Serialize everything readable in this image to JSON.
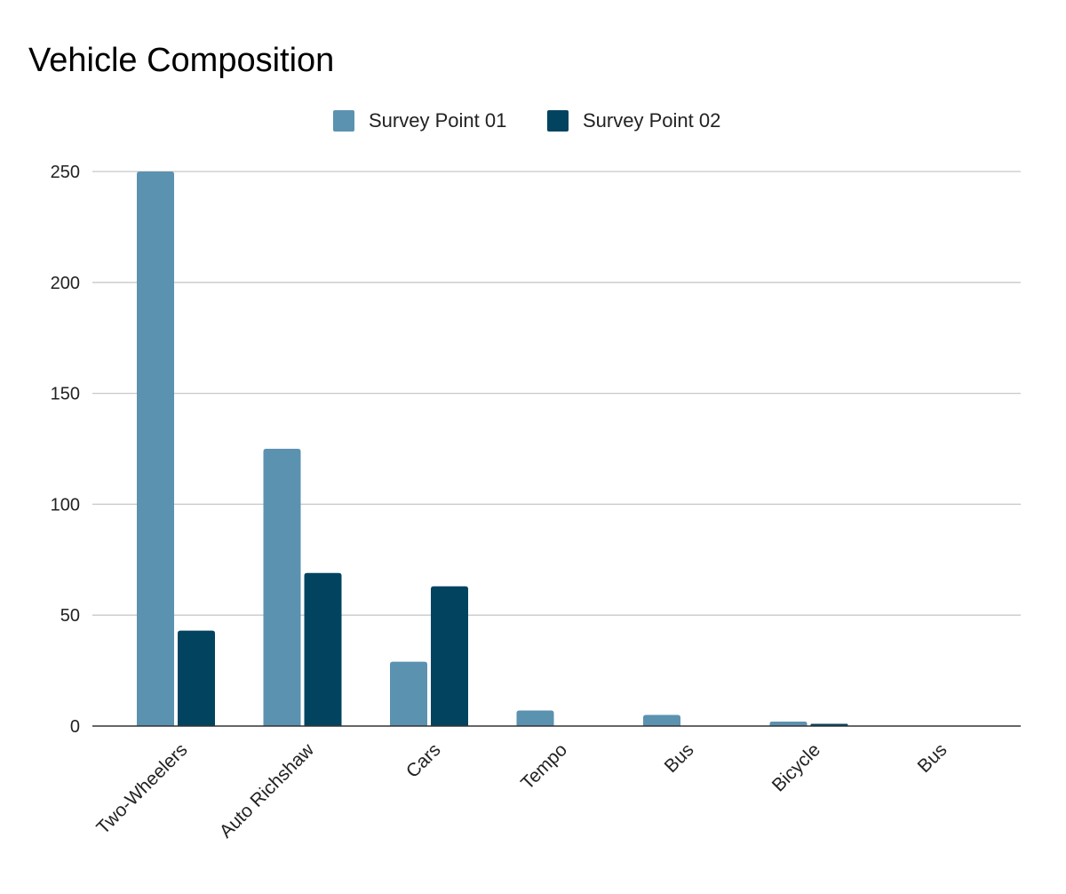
{
  "chart_data": {
    "type": "bar",
    "title": "Vehicle Composition",
    "xlabel": "",
    "ylabel": "",
    "categories": [
      "Two-Wheelers",
      "Auto Richshaw",
      "Cars",
      "Tempo",
      "Bus",
      "Bicycle",
      "Bus"
    ],
    "series": [
      {
        "name": "Survey Point 01",
        "color": "#5b92b0",
        "values": [
          250,
          125,
          29,
          7,
          5,
          2,
          0
        ]
      },
      {
        "name": "Survey Point 02",
        "color": "#024460",
        "values": [
          43,
          69,
          63,
          0,
          0,
          1,
          0
        ]
      }
    ],
    "ylim": [
      0,
      250
    ],
    "yticks": [
      0,
      50,
      100,
      150,
      200,
      250
    ],
    "grid": true,
    "legend_position": "top-center"
  }
}
